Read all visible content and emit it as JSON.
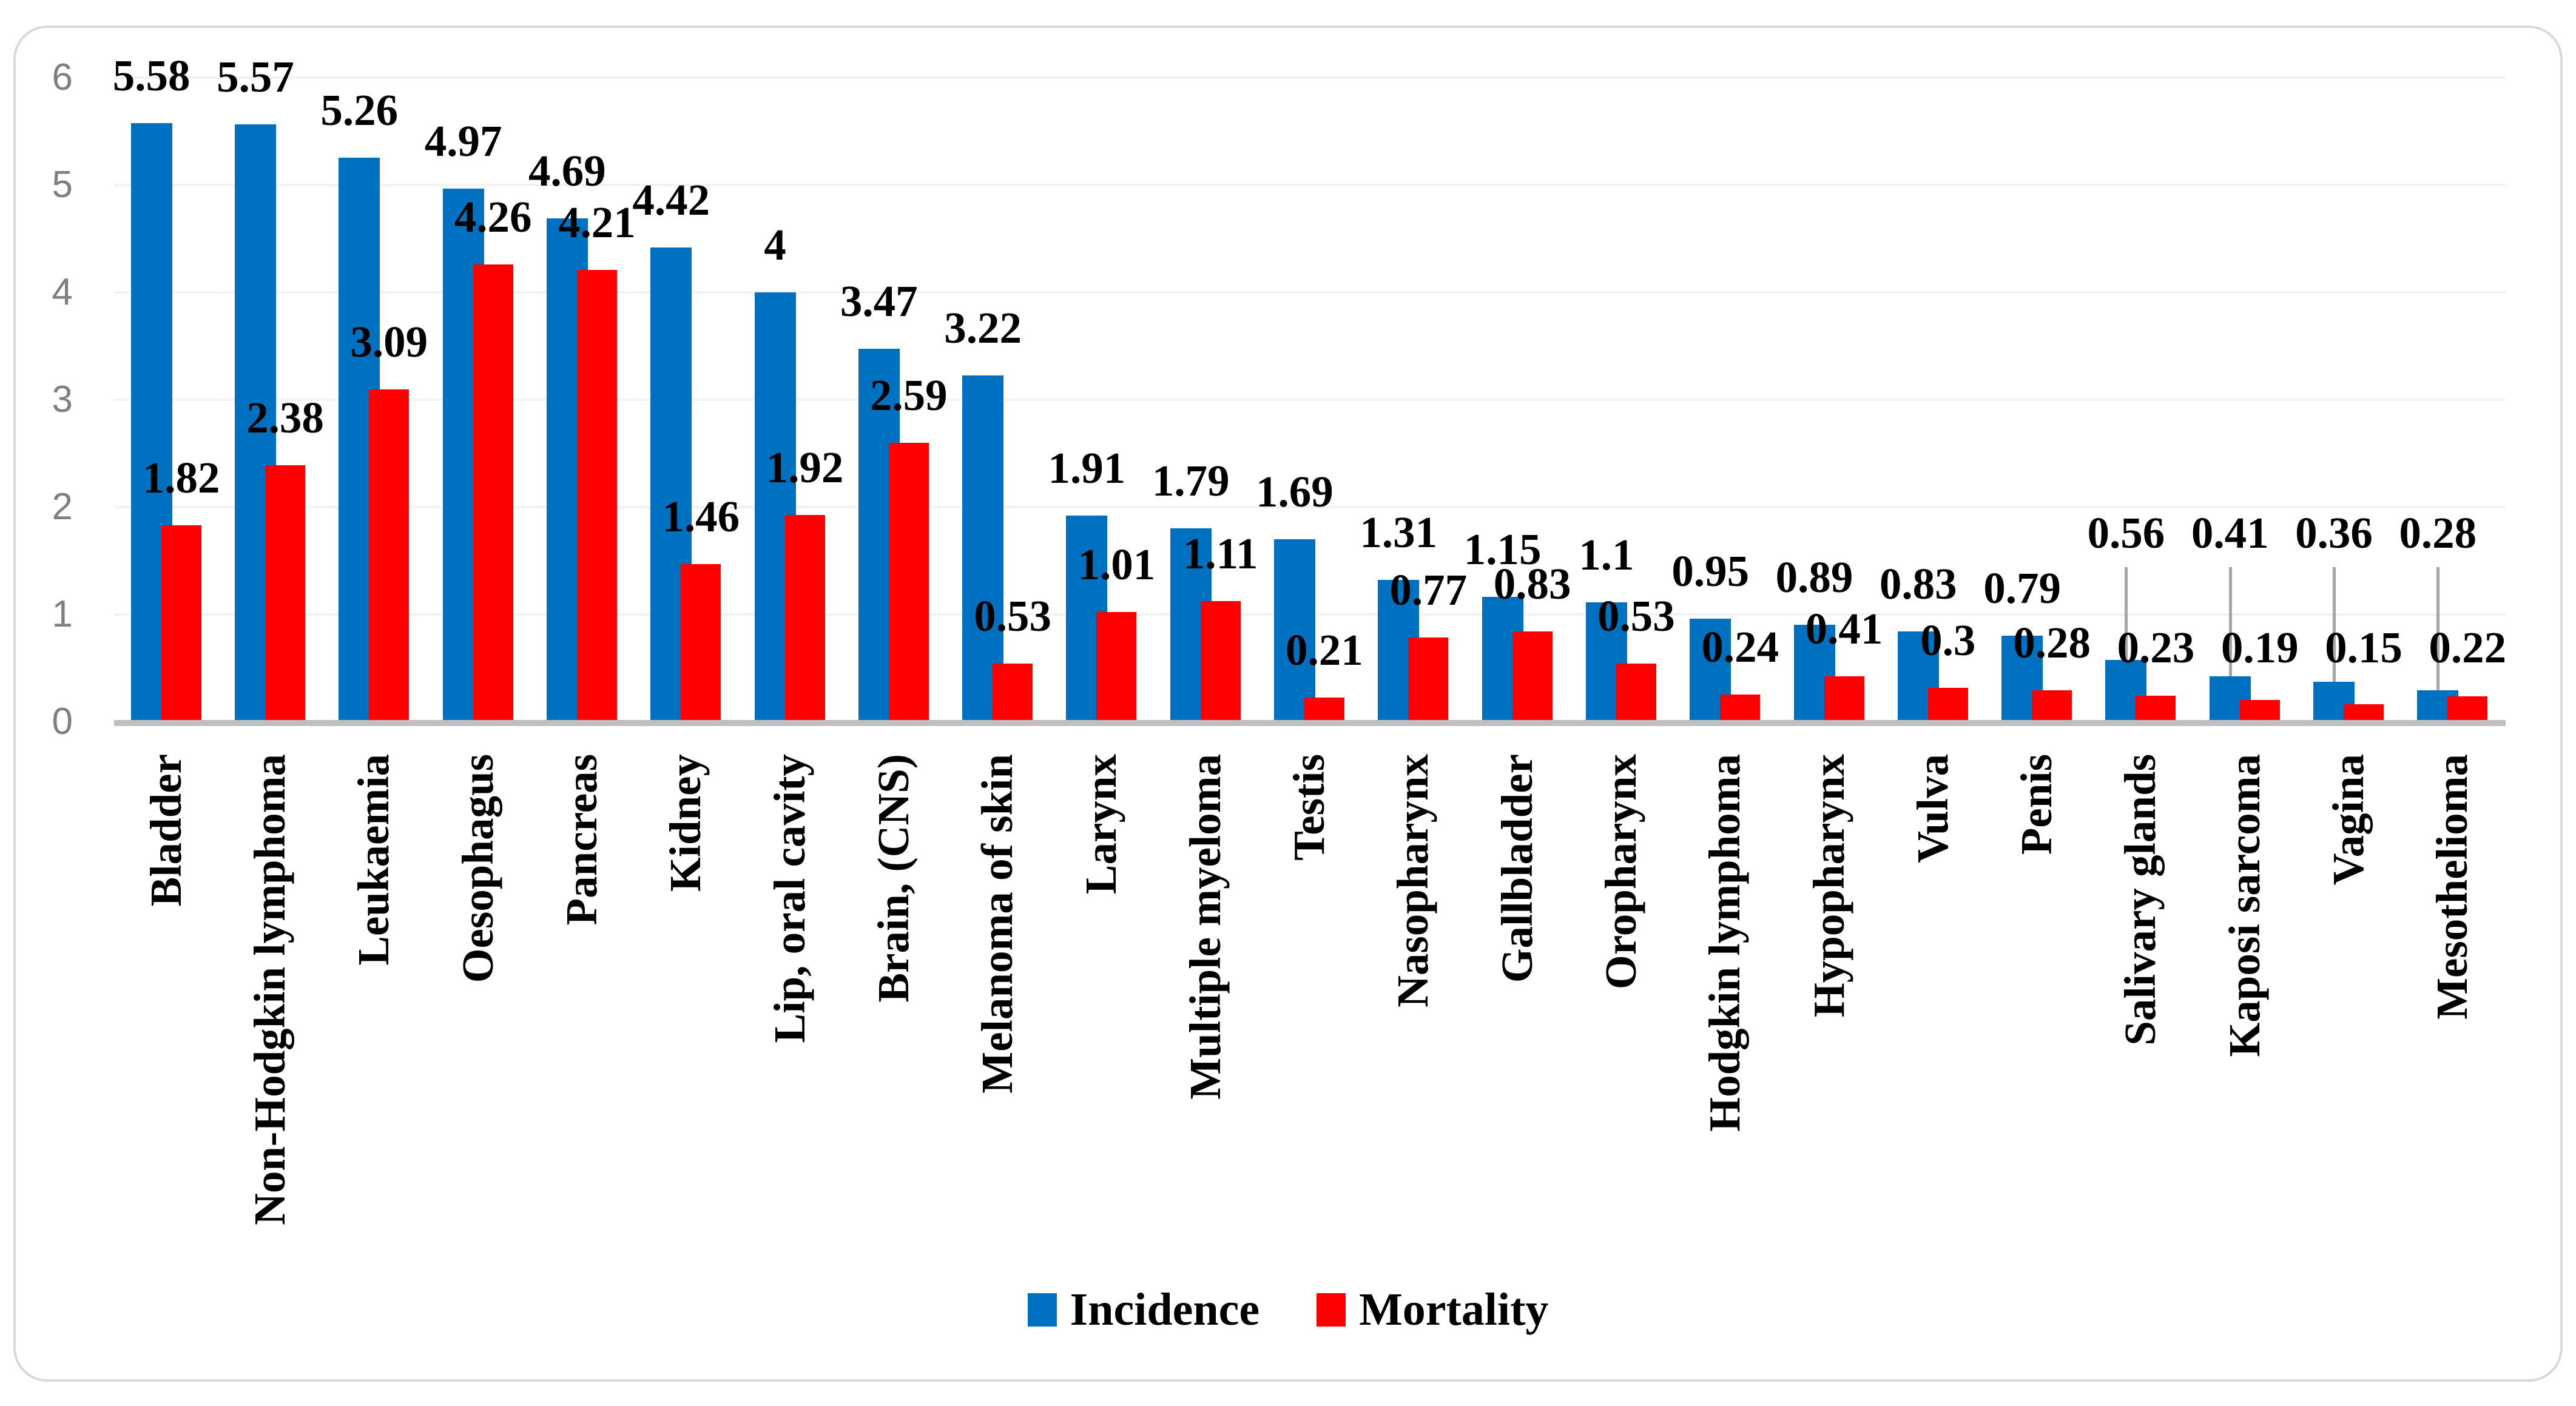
{
  "figure": {
    "background": "#FFFFFF",
    "border_color": "#D9D9D9"
  },
  "chart_data": {
    "type": "bar",
    "title": "",
    "xlabel": "",
    "ylabel": "",
    "categories": [
      "Bladder",
      "Non-Hodgkin lymphoma",
      "Leukaemia",
      "Oesophagus",
      "Pancreas",
      "Kidney",
      "Lip, oral cavity",
      "Brain, (CNS)",
      "Melanoma of skin",
      "Larynx",
      "Multiple myeloma",
      "Testis",
      "Nasopharynx",
      "Gallbladder",
      "Oropharynx",
      "Hodgkin lymphoma",
      "Hypopharynx",
      "Vulva",
      "Penis",
      "Salivary glands",
      "Kaposi sarcoma",
      "Vagina",
      "Mesothelioma"
    ],
    "series": [
      {
        "name": "Incidence",
        "color": "#0070C0",
        "values": [
          5.58,
          5.57,
          5.26,
          4.97,
          4.69,
          4.42,
          4,
          3.47,
          3.22,
          1.91,
          1.79,
          1.69,
          1.31,
          1.15,
          1.1,
          0.95,
          0.89,
          0.83,
          0.79,
          0.56,
          0.41,
          0.36,
          0.28
        ],
        "labels": [
          "5.58",
          "5.57",
          "5.26",
          "4.97",
          "4.69",
          "4.42",
          "4",
          "3.47",
          "3.22",
          "1.91",
          "1.79",
          "1.69",
          "1.31",
          "1.15",
          "1.1",
          "0.95",
          "0.89",
          "0.83",
          "0.79",
          "0.56",
          "0.41",
          "0.36",
          "0.28"
        ]
      },
      {
        "name": "Mortality",
        "color": "#FF0000",
        "values": [
          1.82,
          2.38,
          3.09,
          4.26,
          4.21,
          1.46,
          1.92,
          2.59,
          0.53,
          1.01,
          1.11,
          0.21,
          0.77,
          0.83,
          0.53,
          0.24,
          0.41,
          0.3,
          0.28,
          0.23,
          0.19,
          0.15,
          0.22
        ],
        "labels": [
          "1.82",
          "2.38",
          "3.09",
          "4.26",
          "4.21",
          "1.46",
          "1.92",
          "2.59",
          "0.53",
          "1.01",
          "1.11",
          "0.21",
          "0.77",
          "0.83",
          "0.53",
          "0.24",
          "0.41",
          "0.3",
          "0.28",
          "0.23",
          "0.19",
          "0.15",
          "0.22"
        ]
      }
    ],
    "ylim": [
      0,
      6
    ],
    "yticks": [
      "0",
      "1",
      "2",
      "3",
      "4",
      "5",
      "6"
    ],
    "grid": "horizontal",
    "gridline_color": "#F2F2F2",
    "axis_line_color": "#BFBFBF",
    "tick_label_color": "#7F7F7F",
    "legend_position": "bottom",
    "callout_label_categories": [
      "Salivary glands",
      "Kaposi sarcoma",
      "Vagina",
      "Mesothelioma"
    ],
    "leader_line_color": "#A6A6A6"
  }
}
